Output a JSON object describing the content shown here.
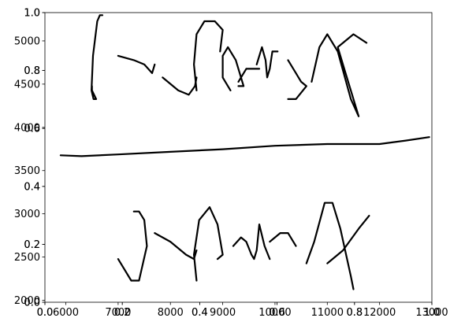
{
  "chart_data": {
    "type": "line",
    "title": "",
    "xlabel": "",
    "ylabel": "",
    "grid": false,
    "axes": {
      "outer": {
        "xlim": [
          0,
          1
        ],
        "ylim": [
          0,
          1
        ],
        "x_ticks": [
          "0.0",
          "0.2",
          "0.4",
          "0.6",
          "0.8",
          "1.0"
        ],
        "y_ticks": [
          "0.0",
          "0.2",
          "0.4",
          "0.6",
          "0.8",
          "1.0"
        ]
      },
      "middle": {
        "xlim": [
          0,
          1
        ],
        "ylim": [
          0,
          1
        ],
        "x_ticks": [
          "0.0",
          "0.2",
          "0.4",
          "0.6",
          "0.8",
          "1.0"
        ],
        "y_ticks": [
          "0.0",
          "0.2",
          "0.4",
          "0.6",
          "0.8",
          "1.0"
        ]
      },
      "inner": {
        "xlim": [
          5600,
          13000
        ],
        "ylim": [
          1950,
          5300
        ],
        "x_ticks": [
          "6000",
          "7000",
          "8000",
          "9000",
          "10000",
          "11000",
          "12000",
          "13000"
        ],
        "y_ticks": [
          "2000",
          "2500",
          "3000",
          "3500",
          "4000",
          "4500",
          "5000"
        ]
      }
    },
    "series": [
      {
        "values": [
          [
            6500,
            4450
          ],
          [
            6500,
            4400
          ],
          [
            6580,
            4300
          ],
          [
            6530,
            4300
          ],
          [
            6490,
            4400
          ],
          [
            6520,
            4800
          ],
          [
            6600,
            5200
          ],
          [
            6650,
            5270
          ],
          [
            6700,
            5270
          ]
        ]
      },
      {
        "values": [
          [
            7000,
            4800
          ],
          [
            7300,
            4750
          ],
          [
            7500,
            4700
          ],
          [
            7650,
            4600
          ],
          [
            7700,
            4700
          ]
        ]
      },
      {
        "values": [
          [
            7850,
            4550
          ],
          [
            8150,
            4400
          ],
          [
            8350,
            4350
          ],
          [
            8470,
            4450
          ],
          [
            8500,
            4550
          ]
        ]
      },
      {
        "values": [
          [
            8500,
            4400
          ],
          [
            8450,
            4700
          ],
          [
            8500,
            5050
          ],
          [
            8650,
            5200
          ],
          [
            8850,
            5200
          ],
          [
            9000,
            5100
          ],
          [
            8950,
            4850
          ]
        ]
      },
      {
        "values": [
          [
            9150,
            4400
          ],
          [
            9000,
            4550
          ],
          [
            9000,
            4800
          ],
          [
            9100,
            4900
          ],
          [
            9250,
            4750
          ],
          [
            9400,
            4450
          ],
          [
            9300,
            4450
          ]
        ]
      },
      {
        "values": [
          [
            9300,
            4500
          ],
          [
            9450,
            4650
          ],
          [
            9600,
            4650
          ],
          [
            9700,
            4650
          ]
        ]
      },
      {
        "values": [
          [
            9650,
            4700
          ],
          [
            9750,
            4900
          ],
          [
            9820,
            4750
          ],
          [
            9850,
            4550
          ],
          [
            9900,
            4650
          ],
          [
            9950,
            4850
          ],
          [
            10050,
            4850
          ]
        ]
      },
      {
        "values": [
          [
            10250,
            4750
          ],
          [
            10400,
            4600
          ],
          [
            10500,
            4500
          ],
          [
            10600,
            4450
          ],
          [
            10400,
            4300
          ],
          [
            10250,
            4300
          ]
        ]
      },
      {
        "values": [
          [
            10700,
            4500
          ],
          [
            10850,
            4900
          ],
          [
            11000,
            5050
          ],
          [
            11200,
            4850
          ],
          [
            11450,
            4300
          ],
          [
            11600,
            4100
          ],
          [
            11550,
            4200
          ],
          [
            11350,
            4600
          ],
          [
            11200,
            4900
          ],
          [
            11500,
            5050
          ],
          [
            11750,
            4950
          ]
        ]
      },
      {
        "values": [
          [
            5900,
            3650
          ],
          [
            6300,
            3640
          ],
          [
            7000,
            3660
          ],
          [
            8000,
            3690
          ],
          [
            9000,
            3720
          ],
          [
            10000,
            3760
          ],
          [
            11000,
            3780
          ],
          [
            12000,
            3780
          ],
          [
            12500,
            3820
          ],
          [
            12950,
            3860
          ]
        ]
      },
      {
        "values": [
          [
            7000,
            2450
          ],
          [
            7250,
            2200
          ],
          [
            7400,
            2200
          ],
          [
            7550,
            2600
          ],
          [
            7500,
            2900
          ],
          [
            7400,
            3000
          ],
          [
            7300,
            3000
          ]
        ]
      },
      {
        "values": [
          [
            7700,
            2750
          ],
          [
            8000,
            2650
          ],
          [
            8300,
            2500
          ],
          [
            8450,
            2450
          ],
          [
            8500,
            2550
          ]
        ]
      },
      {
        "values": [
          [
            8500,
            2200
          ],
          [
            8450,
            2500
          ],
          [
            8550,
            2900
          ],
          [
            8750,
            3050
          ],
          [
            8900,
            2850
          ],
          [
            9000,
            2500
          ],
          [
            8900,
            2450
          ]
        ]
      },
      {
        "values": [
          [
            9200,
            2600
          ],
          [
            9350,
            2700
          ],
          [
            9450,
            2650
          ],
          [
            9550,
            2500
          ],
          [
            9600,
            2450
          ],
          [
            9650,
            2550
          ],
          [
            9700,
            2850
          ],
          [
            9800,
            2600
          ],
          [
            9900,
            2450
          ]
        ]
      },
      {
        "values": [
          [
            9900,
            2650
          ],
          [
            10100,
            2750
          ],
          [
            10250,
            2750
          ],
          [
            10400,
            2600
          ]
        ]
      },
      {
        "values": [
          [
            10600,
            2400
          ],
          [
            10750,
            2650
          ],
          [
            10950,
            3100
          ],
          [
            11100,
            3100
          ],
          [
            11250,
            2800
          ],
          [
            11450,
            2250
          ],
          [
            11500,
            2100
          ]
        ]
      },
      {
        "values": [
          [
            11000,
            2400
          ],
          [
            11300,
            2550
          ],
          [
            11600,
            2800
          ],
          [
            11800,
            2950
          ]
        ]
      }
    ]
  }
}
